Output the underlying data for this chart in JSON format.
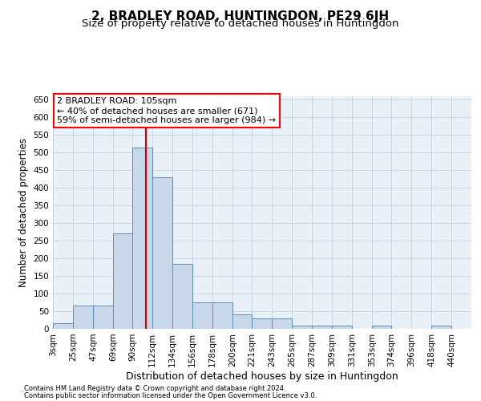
{
  "title": "2, BRADLEY ROAD, HUNTINGDON, PE29 6JH",
  "subtitle": "Size of property relative to detached houses in Huntingdon",
  "xlabel": "Distribution of detached houses by size in Huntingdon",
  "ylabel": "Number of detached properties",
  "footnote1": "Contains HM Land Registry data © Crown copyright and database right 2024.",
  "footnote2": "Contains public sector information licensed under the Open Government Licence v3.0.",
  "annotation_line1": "2 BRADLEY ROAD: 105sqm",
  "annotation_line2": "← 40% of detached houses are smaller (671)",
  "annotation_line3": "59% of semi-detached houses are larger (984) →",
  "bar_color": "#c8d8e8",
  "bar_edge_color": "#5b8db8",
  "grid_color": "#c8d4e4",
  "background_color": "#eaf0f8",
  "redline_color": "#cc0000",
  "redline_x": 105,
  "categories": [
    "3sqm",
    "25sqm",
    "47sqm",
    "69sqm",
    "90sqm",
    "112sqm",
    "134sqm",
    "156sqm",
    "178sqm",
    "200sqm",
    "221sqm",
    "243sqm",
    "265sqm",
    "287sqm",
    "309sqm",
    "331sqm",
    "353sqm",
    "374sqm",
    "396sqm",
    "418sqm",
    "440sqm"
  ],
  "bin_edges": [
    3,
    25,
    47,
    69,
    90,
    112,
    134,
    156,
    178,
    200,
    221,
    243,
    265,
    287,
    309,
    331,
    353,
    374,
    396,
    418,
    440,
    462
  ],
  "values": [
    15,
    65,
    65,
    270,
    515,
    430,
    185,
    75,
    75,
    40,
    30,
    30,
    10,
    10,
    10,
    0,
    10,
    0,
    0,
    10,
    0
  ],
  "ylim": [
    0,
    660
  ],
  "yticks": [
    0,
    50,
    100,
    150,
    200,
    250,
    300,
    350,
    400,
    450,
    500,
    550,
    600,
    650
  ],
  "title_fontsize": 11,
  "subtitle_fontsize": 9.5,
  "ylabel_fontsize": 8.5,
  "xlabel_fontsize": 9,
  "tick_fontsize": 7.5,
  "annotation_fontsize": 8,
  "footnote_fontsize": 6
}
